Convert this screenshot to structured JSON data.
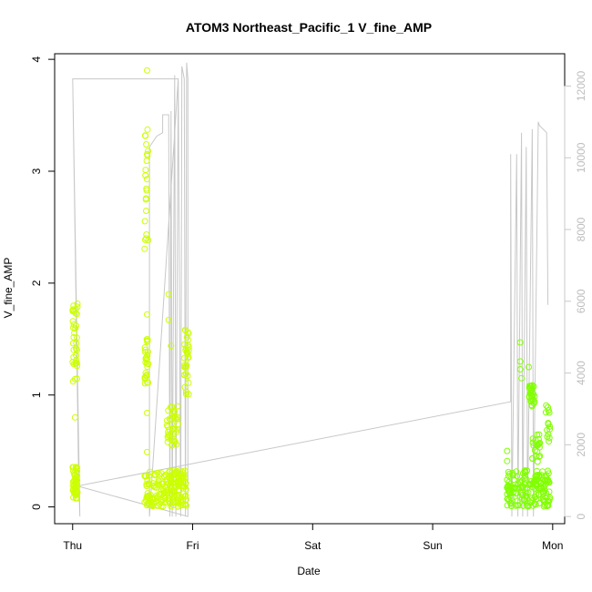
{
  "chart_data": {
    "type": "scatter",
    "title": "ATOM3 Northeast_Pacific_1 V_fine_AMP",
    "xlabel": "Date",
    "ylabel": "V_fine_AMP",
    "x_ticks": [
      "Thu",
      "Fri",
      "Sat",
      "Sun",
      "Mon"
    ],
    "y_ticks": [
      "0",
      "1",
      "2",
      "3",
      "4"
    ],
    "y2_ticks": [
      "0",
      "2000",
      "4000",
      "6000",
      "8000",
      "10000",
      "12000"
    ],
    "x_range_days": [
      -0.15,
      4.1
    ],
    "ylim": [
      -0.15,
      4.05
    ],
    "y2lim": [
      -200,
      12900
    ],
    "grid": false,
    "legend": "none",
    "colors": {
      "points_early": "#ccff00",
      "points_late": "#80ff00",
      "secondary_line": "#c8c8c8",
      "axes": "#000000"
    },
    "clusters": [
      {
        "name": "thu-main",
        "x0": 0.0,
        "x1": 0.04,
        "ymin": 0.06,
        "ymax": 0.38,
        "n": 50,
        "color": "#ccff00"
      },
      {
        "name": "thu-high",
        "x0": 0.0,
        "x1": 0.04,
        "ymin": 1.12,
        "ymax": 1.82,
        "n": 36,
        "color": "#ccff00"
      },
      {
        "name": "thu-out",
        "x0": 0.02,
        "x1": 0.02,
        "ymin": 0.8,
        "ymax": 0.8,
        "n": 1,
        "color": "#ccff00"
      },
      {
        "name": "b-high",
        "x0": 0.6,
        "x1": 0.63,
        "ymin": 1.1,
        "ymax": 1.52,
        "n": 26,
        "color": "#ccff00"
      },
      {
        "name": "b-top",
        "x0": 0.6,
        "x1": 0.63,
        "ymin": 2.3,
        "ymax": 3.4,
        "n": 22,
        "color": "#ccff00"
      },
      {
        "name": "b-low",
        "x0": 0.6,
        "x1": 0.95,
        "ymin": 0.0,
        "ymax": 0.33,
        "n": 190,
        "color": "#ccff00"
      },
      {
        "name": "b-mid",
        "x0": 0.78,
        "x1": 0.88,
        "ymin": 0.55,
        "ymax": 0.9,
        "n": 40,
        "color": "#ccff00"
      },
      {
        "name": "b-friday",
        "x0": 0.93,
        "x1": 0.97,
        "ymin": 1.0,
        "ymax": 1.6,
        "n": 32,
        "color": "#ccff00"
      },
      {
        "name": "m-low",
        "x0": 3.62,
        "x1": 3.98,
        "ymin": 0.0,
        "ymax": 0.33,
        "n": 170,
        "color": "#80ff00"
      },
      {
        "name": "m-mid",
        "x0": 3.8,
        "x1": 3.85,
        "ymin": 0.9,
        "ymax": 1.1,
        "n": 26,
        "color": "#80ff00"
      },
      {
        "name": "m-late",
        "x0": 3.83,
        "x1": 3.9,
        "ymin": 0.4,
        "ymax": 0.65,
        "n": 22,
        "color": "#80ff00"
      },
      {
        "name": "m-end",
        "x0": 3.94,
        "x1": 3.98,
        "ymin": 0.55,
        "ymax": 0.92,
        "n": 14,
        "color": "#80ff00"
      }
    ],
    "scatter_outliers": [
      {
        "x": 0.62,
        "y": 3.9
      },
      {
        "x": 0.62,
        "y": 1.72
      },
      {
        "x": 0.62,
        "y": 0.84
      },
      {
        "x": 0.62,
        "y": 0.49
      },
      {
        "x": 0.8,
        "y": 1.9
      },
      {
        "x": 0.8,
        "y": 1.67
      },
      {
        "x": 0.82,
        "y": 1.44
      },
      {
        "x": 3.73,
        "y": 1.47
      },
      {
        "x": 3.73,
        "y": 1.3
      },
      {
        "x": 3.73,
        "y": 1.23
      },
      {
        "x": 3.74,
        "y": 1.15
      },
      {
        "x": 3.8,
        "y": 1.25
      },
      {
        "x": 3.62,
        "y": 0.5
      },
      {
        "x": 3.62,
        "y": 0.41
      }
    ],
    "secondary_series": {
      "name": "",
      "points": [
        [
          0.0,
          12200
        ],
        [
          0.0,
          12200
        ],
        [
          0.05,
          1000
        ],
        [
          0.06,
          0
        ],
        [
          0.0,
          12200
        ],
        [
          0.88,
          12200
        ],
        [
          0.64,
          0
        ],
        [
          0.64,
          10300
        ],
        [
          0.7,
          10600
        ],
        [
          0.75,
          10700
        ],
        [
          0.75,
          11200
        ],
        [
          0.8,
          11200
        ],
        [
          0.81,
          0
        ],
        [
          0.82,
          11300
        ],
        [
          0.83,
          0
        ],
        [
          0.85,
          12300
        ],
        [
          0.86,
          0
        ],
        [
          0.88,
          12200
        ],
        [
          0.9,
          0
        ],
        [
          0.91,
          12550
        ],
        [
          0.93,
          12200
        ],
        [
          0.94,
          0
        ],
        [
          0.95,
          12650
        ],
        [
          0.96,
          12200
        ],
        [
          0.96,
          0
        ],
        [
          0.04,
          850
        ],
        [
          3.65,
          3200
        ],
        [
          3.65,
          10100
        ],
        [
          3.66,
          0
        ],
        [
          3.7,
          10100
        ],
        [
          3.71,
          0
        ],
        [
          3.74,
          10700
        ],
        [
          3.75,
          0
        ],
        [
          3.78,
          10300
        ],
        [
          3.79,
          0
        ],
        [
          3.83,
          10800
        ],
        [
          3.84,
          0
        ],
        [
          3.88,
          11000
        ],
        [
          3.89,
          10900
        ],
        [
          3.95,
          10700
        ],
        [
          3.96,
          5900
        ]
      ]
    }
  }
}
